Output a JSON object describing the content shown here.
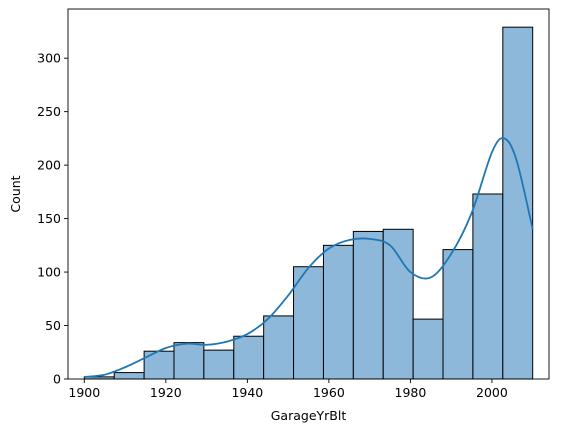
{
  "chart_data": {
    "type": "bar",
    "subtype": "histogram-with-kde",
    "title": "",
    "xlabel": "GarageYrBlt",
    "ylabel": "Count",
    "xlim": [
      1896,
      2014
    ],
    "ylim": [
      0,
      346
    ],
    "xticks": [
      1900,
      1920,
      1940,
      1960,
      1980,
      2000
    ],
    "yticks": [
      0,
      50,
      100,
      150,
      200,
      250,
      300
    ],
    "bin_edges": [
      1900,
      1907.33,
      1914.67,
      1922,
      1929.33,
      1936.67,
      1944,
      1951.33,
      1958.67,
      1966,
      1973.33,
      1980.67,
      1988,
      1995.33,
      2002.67,
      2010
    ],
    "values": [
      2,
      6,
      26,
      34,
      27,
      40,
      59,
      105,
      125,
      138,
      140,
      56,
      121,
      173,
      329
    ],
    "kde": {
      "x": [
        1900,
        1905,
        1910,
        1915,
        1920,
        1925,
        1930,
        1935,
        1940,
        1945,
        1950,
        1955,
        1960,
        1965,
        1970,
        1975,
        1980,
        1985,
        1990,
        1995,
        2000,
        2003,
        2006,
        2010
      ],
      "y": [
        2,
        4,
        11,
        20,
        29,
        33,
        32,
        35,
        42,
        56,
        78,
        104,
        122,
        130,
        131,
        125,
        100,
        95,
        117,
        155,
        212,
        225,
        205,
        140
      ]
    },
    "grid": false,
    "legend": "none",
    "colors": {
      "bar_fill": "#8db8da",
      "bar_edge": "#000000",
      "kde_line": "#1f77b4",
      "axes": "#000000"
    }
  }
}
